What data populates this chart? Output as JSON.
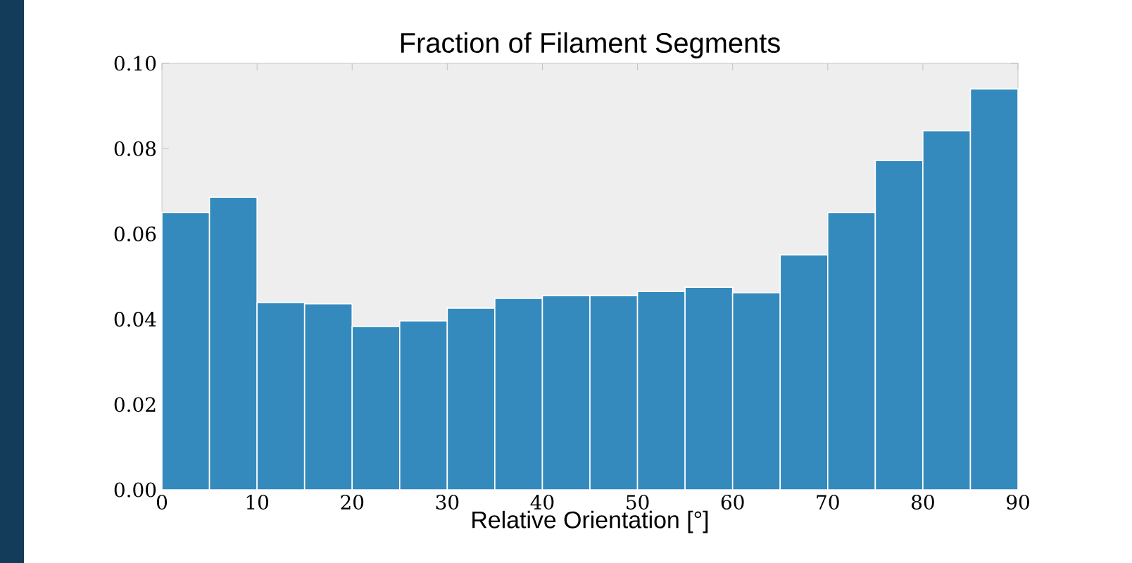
{
  "chart_data": {
    "type": "histogram",
    "title": "Fraction of Filament Segments",
    "xlabel": "Relative Orientation [°]",
    "bins": [
      0,
      5,
      10,
      15,
      20,
      25,
      30,
      35,
      40,
      45,
      50,
      55,
      60,
      65,
      70,
      75,
      80,
      85,
      90
    ],
    "values": [
      0.065,
      0.0686,
      0.0439,
      0.0436,
      0.0383,
      0.0396,
      0.0426,
      0.0449,
      0.0455,
      0.0455,
      0.0465,
      0.0475,
      0.0462,
      0.0551,
      0.065,
      0.0772,
      0.0842,
      0.094
    ],
    "color": "#348abd",
    "xlim": [
      0,
      90
    ],
    "ylim": [
      0,
      0.1
    ],
    "xticks": [
      0,
      10,
      20,
      30,
      40,
      50,
      60,
      70,
      80,
      90
    ],
    "yticks": [
      {
        "value": 0,
        "label": "0.00"
      },
      {
        "value": 0.02,
        "label": "0.02"
      },
      {
        "value": 0.04,
        "label": "0.04"
      },
      {
        "value": 0.06,
        "label": "0.06"
      },
      {
        "value": 0.08,
        "label": "0.08"
      },
      {
        "value": 0.1,
        "label": "0.10"
      }
    ],
    "grid": false
  }
}
